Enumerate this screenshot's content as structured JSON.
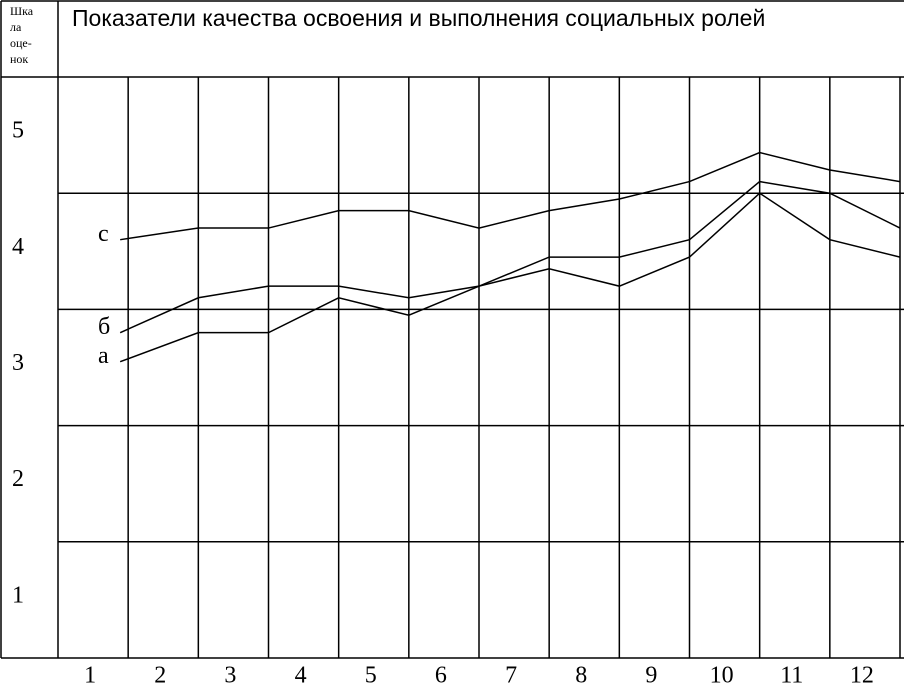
{
  "chart_data": {
    "type": "line",
    "title": "Показатели качества освоения и выполнения социальных ролей",
    "y_label_lines": [
      "Шка",
      "ла",
      "оце-",
      "нок"
    ],
    "categories": [
      "1",
      "2",
      "3",
      "4",
      "5",
      "6",
      "7",
      "8",
      "9",
      "10",
      "11",
      "12"
    ],
    "series": [
      {
        "name": "с",
        "color": "#000000",
        "values": [
          4.1,
          4.2,
          4.2,
          4.35,
          4.35,
          4.2,
          4.35,
          4.45,
          4.6,
          4.85,
          4.7,
          4.6
        ]
      },
      {
        "name": "б",
        "color": "#000000",
        "values": [
          3.3,
          3.6,
          3.7,
          3.7,
          3.6,
          3.7,
          3.95,
          3.95,
          4.1,
          4.6,
          4.5,
          4.2
        ]
      },
      {
        "name": "а",
        "color": "#000000",
        "values": [
          3.05,
          3.3,
          3.3,
          3.6,
          3.45,
          3.7,
          3.85,
          3.7,
          3.95,
          4.5,
          4.1,
          3.95
        ]
      }
    ],
    "ylim": [
      0.5,
      5.5
    ],
    "yticks": [
      1,
      2,
      3,
      4,
      5
    ],
    "grid": true
  }
}
